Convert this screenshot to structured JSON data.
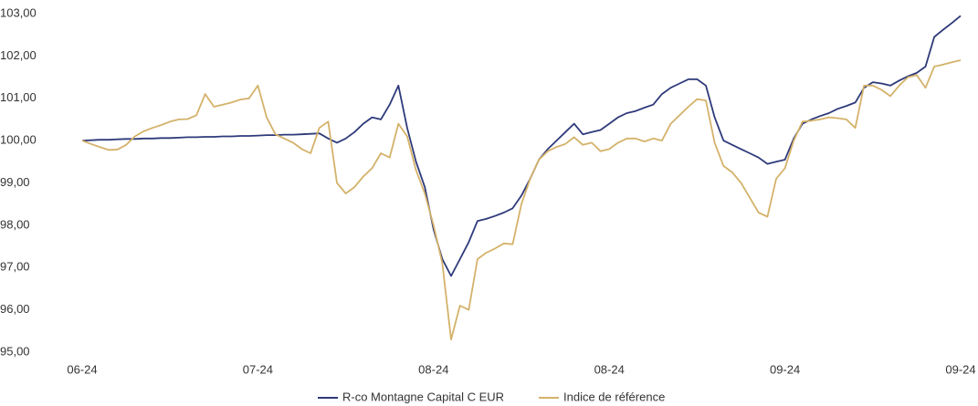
{
  "chart_data": {
    "type": "line",
    "categories": [
      "06-24",
      null,
      null,
      null,
      null,
      null,
      null,
      null,
      null,
      null,
      null,
      null,
      null,
      null,
      null,
      null,
      null,
      null,
      null,
      null,
      "07-24",
      null,
      null,
      null,
      null,
      null,
      null,
      null,
      null,
      null,
      null,
      null,
      null,
      null,
      null,
      null,
      null,
      null,
      null,
      null,
      "08-24",
      null,
      null,
      null,
      null,
      null,
      null,
      null,
      null,
      null,
      null,
      null,
      null,
      null,
      null,
      null,
      null,
      null,
      null,
      null,
      "08-24",
      null,
      null,
      null,
      null,
      null,
      null,
      null,
      null,
      null,
      null,
      null,
      null,
      null,
      null,
      null,
      null,
      null,
      null,
      null,
      "09-24",
      null,
      null,
      null,
      null,
      null,
      null,
      null,
      null,
      null,
      null,
      null,
      null,
      null,
      null,
      null,
      null,
      null,
      null,
      null,
      "09-24"
    ],
    "series": [
      {
        "name": "R-co Montagne Capital C EUR",
        "color": "#2e3a7a",
        "values": [
          100.0,
          100.01,
          100.02,
          100.02,
          100.03,
          100.04,
          100.04,
          100.05,
          100.05,
          100.06,
          100.06,
          100.07,
          100.08,
          100.08,
          100.09,
          100.09,
          100.1,
          100.1,
          100.11,
          100.11,
          100.12,
          100.13,
          100.13,
          100.14,
          100.14,
          100.15,
          100.16,
          100.17,
          100.05,
          99.95,
          100.05,
          100.2,
          100.4,
          100.55,
          100.5,
          100.85,
          101.3,
          100.3,
          99.5,
          98.9,
          97.9,
          97.2,
          96.8,
          97.2,
          97.6,
          98.1,
          98.15,
          98.22,
          98.3,
          98.4,
          98.7,
          99.1,
          99.55,
          99.8,
          100.0,
          100.2,
          100.4,
          100.15,
          100.2,
          100.25,
          100.4,
          100.55,
          100.65,
          100.7,
          100.78,
          100.85,
          101.1,
          101.25,
          101.35,
          101.45,
          101.45,
          101.3,
          100.55,
          100.0,
          99.9,
          99.8,
          99.7,
          99.6,
          99.45,
          99.5,
          99.55,
          100.05,
          100.4,
          100.5,
          100.58,
          100.65,
          100.75,
          100.82,
          100.9,
          101.25,
          101.38,
          101.35,
          101.3,
          101.42,
          101.52,
          101.6,
          101.75,
          102.45,
          102.62,
          102.78,
          102.95
        ]
      },
      {
        "name": "Indice de référence",
        "color": "#d4b26a",
        "values": [
          100.0,
          99.92,
          99.85,
          99.78,
          99.79,
          99.9,
          100.1,
          100.22,
          100.3,
          100.37,
          100.45,
          100.5,
          100.51,
          100.6,
          101.1,
          100.8,
          100.85,
          100.9,
          100.97,
          101.0,
          101.3,
          100.55,
          100.15,
          100.05,
          99.95,
          99.8,
          99.7,
          100.3,
          100.45,
          99.0,
          98.75,
          98.9,
          99.15,
          99.35,
          99.7,
          99.6,
          100.4,
          100.1,
          99.3,
          98.75,
          98.0,
          97.1,
          95.3,
          96.1,
          96.0,
          97.2,
          97.35,
          97.45,
          97.57,
          97.55,
          98.5,
          99.1,
          99.55,
          99.75,
          99.85,
          99.92,
          100.08,
          99.9,
          99.95,
          99.75,
          99.8,
          99.95,
          100.05,
          100.05,
          99.98,
          100.05,
          100.0,
          100.4,
          100.6,
          100.8,
          100.98,
          100.95,
          99.95,
          99.4,
          99.25,
          99.0,
          98.65,
          98.3,
          98.2,
          99.1,
          99.35,
          100.0,
          100.45,
          100.47,
          100.5,
          100.55,
          100.53,
          100.5,
          100.3,
          101.3,
          101.3,
          101.2,
          101.05,
          101.3,
          101.5,
          101.55,
          101.25,
          101.75,
          101.8,
          101.85,
          101.9
        ]
      }
    ],
    "ylim": [
      95,
      103
    ],
    "yticks": [
      {
        "value": 95,
        "label": "95,00"
      },
      {
        "value": 96,
        "label": "96,00"
      },
      {
        "value": 97,
        "label": "97,00"
      },
      {
        "value": 98,
        "label": "98,00"
      },
      {
        "value": 99,
        "label": "99,00"
      },
      {
        "value": 100,
        "label": "100,00"
      },
      {
        "value": 101,
        "label": "101,00"
      },
      {
        "value": 102,
        "label": "102,00"
      },
      {
        "value": 103,
        "label": "103,00"
      }
    ],
    "grid": false,
    "legend": "bottom"
  }
}
